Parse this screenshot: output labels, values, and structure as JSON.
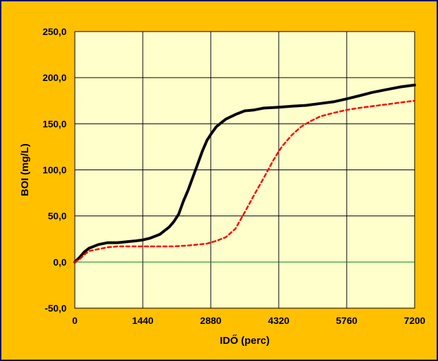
{
  "chart_data": {
    "type": "line",
    "xlabel": "IDŐ (perc)",
    "ylabel": "BOI (mg/L)",
    "xlim": [
      0,
      7200
    ],
    "ylim": [
      -50,
      250
    ],
    "x_ticks": [
      "0",
      "1440",
      "2880",
      "4320",
      "5760",
      "7200"
    ],
    "x_tick_values": [
      0,
      1440,
      2880,
      4320,
      5760,
      7200
    ],
    "y_ticks": [
      "-50,0",
      "0,0",
      "50,0",
      "100,0",
      "150,0",
      "200,0",
      "250,0"
    ],
    "y_tick_values": [
      -50,
      0,
      50,
      100,
      150,
      200,
      250
    ],
    "grid": true,
    "legend": "none",
    "colors": {
      "background": "#ffc000",
      "plot_area": "#ffffcc",
      "zero_line": "#008000",
      "grid": "#000000",
      "border": "#0a0a6a"
    },
    "series": [
      {
        "style": "solid",
        "color": "#000000",
        "x": [
          0,
          100,
          200,
          300,
          500,
          700,
          900,
          1100,
          1300,
          1440,
          1600,
          1800,
          2000,
          2100,
          2200,
          2300,
          2400,
          2500,
          2600,
          2700,
          2800,
          2900,
          3000,
          3100,
          3200,
          3400,
          3600,
          3800,
          4000,
          4320,
          4600,
          4900,
          5200,
          5500,
          5760,
          6000,
          6300,
          6600,
          6900,
          7200
        ],
        "y": [
          0,
          5,
          11,
          15,
          19,
          21,
          21,
          22,
          23,
          24,
          26,
          30,
          38,
          44,
          52,
          66,
          78,
          92,
          106,
          120,
          132,
          140,
          147,
          151,
          155,
          160,
          164,
          165,
          167,
          168,
          169,
          170,
          172,
          174,
          177,
          180,
          184,
          187,
          190,
          192
        ]
      },
      {
        "style": "dashed",
        "color": "#ff0000",
        "x": [
          0,
          100,
          200,
          300,
          500,
          700,
          900,
          1100,
          1440,
          1800,
          2100,
          2400,
          2600,
          2800,
          3000,
          3200,
          3400,
          3600,
          3800,
          4000,
          4200,
          4320,
          4400,
          4500,
          4600,
          4800,
          5000,
          5200,
          5500,
          5760,
          6000,
          6300,
          6600,
          6900,
          7200
        ],
        "y": [
          0,
          3,
          8,
          12,
          14,
          16,
          17,
          17,
          17,
          17,
          17,
          18,
          19,
          20,
          23,
          27,
          36,
          54,
          73,
          91,
          110,
          120,
          126,
          132,
          138,
          147,
          153,
          158,
          162,
          165,
          167,
          169,
          171,
          173,
          175
        ]
      }
    ]
  }
}
